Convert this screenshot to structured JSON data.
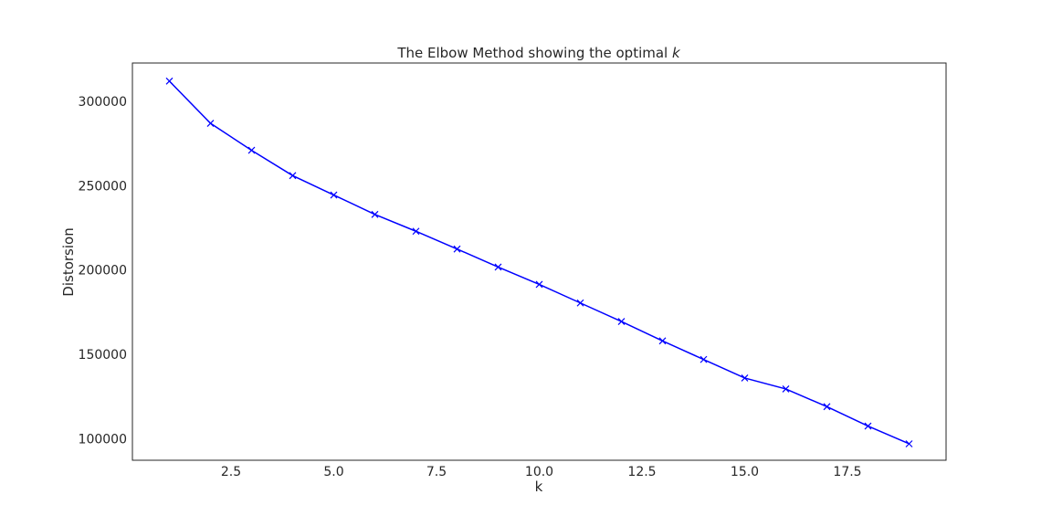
{
  "chart_data": {
    "type": "line",
    "title": "The Elbow Method showing the optimal ",
    "title_variable": "k",
    "xlabel": "k",
    "ylabel": "Distorsion",
    "x": [
      1,
      2,
      3,
      4,
      5,
      6,
      7,
      8,
      9,
      10,
      11,
      12,
      13,
      14,
      15,
      16,
      17,
      18,
      19
    ],
    "series": [
      {
        "values": [
          312000,
          287000,
          271000,
          256000,
          244500,
          233000,
          223000,
          212500,
          201800,
          191500,
          180500,
          169500,
          158000,
          147000,
          136000,
          129500,
          119000,
          107500,
          97000
        ]
      }
    ],
    "xlim": [
      0.1,
      19.9
    ],
    "ylim": [
      87250,
      322750
    ],
    "xticks": [
      2.5,
      5.0,
      7.5,
      10.0,
      12.5,
      15.0,
      17.5
    ],
    "xtick_labels": [
      "2.5",
      "5.0",
      "7.5",
      "10.0",
      "12.5",
      "15.0",
      "17.5"
    ],
    "yticks": [
      100000,
      150000,
      200000,
      250000,
      300000
    ],
    "ytick_labels": [
      "100000",
      "150000",
      "200000",
      "250000",
      "300000"
    ],
    "grid": false,
    "marker": "x",
    "line_color": "#0000ff"
  }
}
